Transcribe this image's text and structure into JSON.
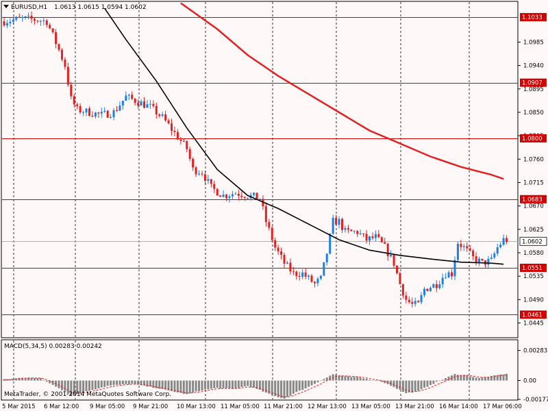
{
  "header": {
    "symbol_label": "EURUSD,H1",
    "ohlc_label": "1.0613 1.0615 1.0594 1.0602"
  },
  "macd": {
    "label": "MACD(5,34,5) 0.00283 0.00242"
  },
  "copyright": "MetaTrader, © 2001-2014 MetaQuotes Software Corp.",
  "colors": {
    "background": "#fff8f8",
    "grid": "#000000",
    "level_line": "#d40000",
    "bull_candle": "#1a7fe6",
    "bear_candle": "#e32020",
    "ma_fast": "#000000",
    "ma_slow": "#e32020",
    "macd_hist": "#888888",
    "macd_signal": "#e32020"
  },
  "price_levels": [
    1.1033,
    1.0907,
    1.08,
    1.0683,
    1.0551,
    1.0461
  ],
  "current_price": 1.0602,
  "chart_data": [
    {
      "type": "candlestick",
      "title": "EURUSD,H1",
      "ylim": [
        1.0418,
        1.1062
      ],
      "y_ticks": [
        1.0985,
        1.094,
        1.0895,
        1.085,
        1.0805,
        1.076,
        1.0715,
        1.067,
        1.0625,
        1.058,
        1.0535,
        1.049,
        1.0445
      ],
      "x_tick_labels": [
        "5 Mar 2015",
        "6 Mar 12:00",
        "9 Mar 05:00",
        "9 Mar 21:00",
        "10 Mar 13:00",
        "11 Mar 05:00",
        "11 Mar 21:00",
        "12 Mar 13:00",
        "13 Mar 05:00",
        "13 Mar 21:00",
        "16 Mar 14:00",
        "17 Mar 06:00"
      ],
      "close_path": [
        [
          0,
          1.1025
        ],
        [
          6,
          1.103
        ],
        [
          10,
          1.1028
        ],
        [
          14,
          1.1025
        ],
        [
          18,
          1.097
        ],
        [
          20,
          1.094
        ],
        [
          22,
          1.0875
        ],
        [
          24,
          1.0855
        ],
        [
          28,
          1.085
        ],
        [
          32,
          1.0845
        ],
        [
          36,
          1.085
        ],
        [
          40,
          1.088
        ],
        [
          44,
          1.087
        ],
        [
          48,
          1.086
        ],
        [
          52,
          1.084
        ],
        [
          56,
          1.081
        ],
        [
          60,
          1.078
        ],
        [
          62,
          1.074
        ],
        [
          65,
          1.0735
        ],
        [
          68,
          1.0705
        ],
        [
          72,
          1.069
        ],
        [
          76,
          1.0695
        ],
        [
          80,
          1.069
        ],
        [
          84,
          1.0685
        ],
        [
          86,
          1.064
        ],
        [
          89,
          1.059
        ],
        [
          92,
          1.056
        ],
        [
          95,
          1.054
        ],
        [
          98,
          1.054
        ],
        [
          102,
          1.052
        ],
        [
          104,
          1.053
        ],
        [
          106,
          1.058
        ],
        [
          108,
          1.064
        ],
        [
          110,
          1.064
        ],
        [
          112,
          1.062
        ],
        [
          116,
          1.062
        ],
        [
          119,
          1.0605
        ],
        [
          122,
          1.061
        ],
        [
          125,
          1.059
        ],
        [
          128,
          1.056
        ],
        [
          130,
          1.052
        ],
        [
          132,
          1.049
        ],
        [
          134,
          1.048
        ],
        [
          136,
          1.048
        ],
        [
          138,
          1.051
        ],
        [
          142,
          1.052
        ],
        [
          145,
          1.054
        ],
        [
          147,
          1.054
        ],
        [
          149,
          1.06
        ],
        [
          151,
          1.059
        ],
        [
          154,
          1.057
        ],
        [
          157,
          1.056
        ],
        [
          160,
          1.0565
        ],
        [
          162,
          1.059
        ],
        [
          164,
          1.0605
        ]
      ],
      "ma_fast_series": [
        [
          33,
          1.105
        ],
        [
          40,
          1.099
        ],
        [
          50,
          1.091
        ],
        [
          60,
          1.082
        ],
        [
          70,
          1.074
        ],
        [
          80,
          1.069
        ],
        [
          90,
          1.0665
        ],
        [
          100,
          1.0635
        ],
        [
          110,
          1.0605
        ],
        [
          120,
          1.0585
        ],
        [
          130,
          1.0575
        ],
        [
          140,
          1.0568
        ],
        [
          150,
          1.0562
        ],
        [
          160,
          1.056
        ],
        [
          164,
          1.0558
        ]
      ],
      "ma_slow_series": [
        [
          58,
          1.106
        ],
        [
          70,
          1.101
        ],
        [
          80,
          1.096
        ],
        [
          90,
          1.092
        ],
        [
          100,
          1.0885
        ],
        [
          110,
          1.085
        ],
        [
          120,
          1.0815
        ],
        [
          130,
          1.079
        ],
        [
          140,
          1.0765
        ],
        [
          150,
          1.0745
        ],
        [
          160,
          1.073
        ],
        [
          164,
          1.0722
        ]
      ]
    },
    {
      "type": "bar",
      "title": "MACD(5,34,5)",
      "ylim": [
        -0.00177,
        0.003
      ],
      "y_ticks": [
        0.00283,
        0.0,
        -0.00177
      ],
      "y_tick_labels": [
        "0.00283",
        "0.00",
        "-0.00177"
      ],
      "histogram_path": [
        [
          0,
          0.0001
        ],
        [
          8,
          0.0003
        ],
        [
          12,
          0.0002
        ],
        [
          18,
          -0.0007
        ],
        [
          22,
          -0.0014
        ],
        [
          26,
          -0.0011
        ],
        [
          30,
          -0.0008
        ],
        [
          34,
          -0.0005
        ],
        [
          38,
          -0.0004
        ],
        [
          42,
          -0.0003
        ],
        [
          46,
          -0.0005
        ],
        [
          50,
          -0.0007
        ],
        [
          55,
          -0.001
        ],
        [
          60,
          -0.0013
        ],
        [
          65,
          -0.0009
        ],
        [
          70,
          -0.0007
        ],
        [
          75,
          -0.0008
        ],
        [
          80,
          -0.0005
        ],
        [
          84,
          -0.0009
        ],
        [
          88,
          -0.0014
        ],
        [
          92,
          -0.0017
        ],
        [
          96,
          -0.0011
        ],
        [
          100,
          -0.0006
        ],
        [
          104,
          0.0
        ],
        [
          108,
          0.0006
        ],
        [
          112,
          0.0004
        ],
        [
          116,
          0.0003
        ],
        [
          120,
          0.0001
        ],
        [
          124,
          -0.0001
        ],
        [
          128,
          -0.0006
        ],
        [
          132,
          -0.0012
        ],
        [
          136,
          -0.001
        ],
        [
          140,
          -0.0004
        ],
        [
          144,
          0.0001
        ],
        [
          148,
          0.0006
        ],
        [
          152,
          0.0005
        ],
        [
          156,
          0.0002
        ],
        [
          160,
          0.0004
        ],
        [
          164,
          0.0006
        ]
      ]
    }
  ]
}
